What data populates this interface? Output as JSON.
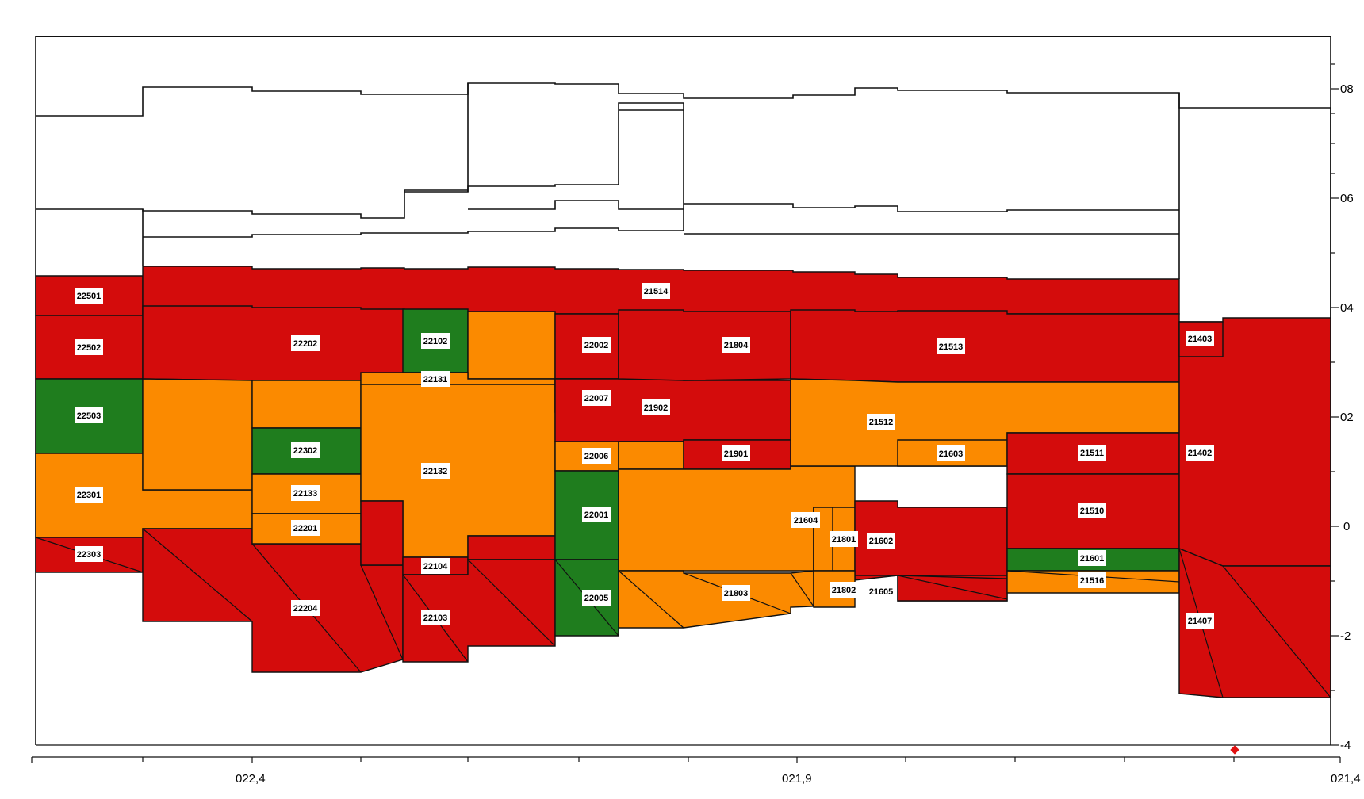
{
  "colors": {
    "red": "#d40c0c",
    "orange": "#fb8a00",
    "green": "#1f7d1e",
    "outline": "#111111",
    "marker": "#e01010"
  },
  "axes": {
    "x_ticks": [
      "022,4",
      "021,9",
      "021,4"
    ],
    "y_ticks": [
      "08",
      "06",
      "04",
      "02",
      "0",
      "-2",
      "-4"
    ]
  },
  "labels": {
    "l22501": "22501",
    "l22502": "22502",
    "l22503": "22503",
    "l22301": "22301",
    "l22303": "22303",
    "l22202": "22202",
    "l22302": "22302",
    "l22133": "22133",
    "l22201": "22201",
    "l22204": "22204",
    "l22102": "22102",
    "l22131": "22131",
    "l22132": "22132",
    "l22104": "22104",
    "l22103": "22103",
    "l22002": "22002",
    "l22007": "22007",
    "l22006": "22006",
    "l22001": "22001",
    "l22005": "22005",
    "l21514": "21514",
    "l21804": "21804",
    "l21902": "21902",
    "l21901": "21901",
    "l21803": "21803",
    "l21604": "21604",
    "l21801": "21801",
    "l21802": "21802",
    "l21602": "21602",
    "l21605": "21605",
    "l21513": "21513",
    "l21512": "21512",
    "l21603": "21603",
    "l21511": "21511",
    "l21510": "21510",
    "l21601": "21601",
    "l21516": "21516",
    "l21403": "21403",
    "l21402": "21402",
    "l21407": "21407"
  }
}
